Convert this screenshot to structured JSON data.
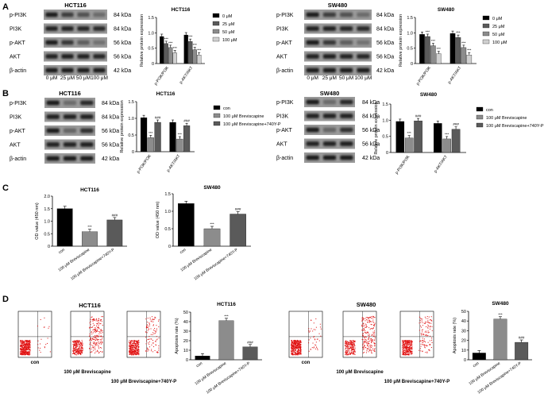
{
  "figure": {
    "panel_letters": [
      "A",
      "B",
      "C",
      "D"
    ],
    "wb_labels_A": [
      "p-PI3K",
      "PI3K",
      "p-AKT",
      "AKT",
      "β-actin"
    ],
    "kda_A": [
      "84 kDa",
      "84 kDa",
      "56 kDa",
      "56 kDa",
      "42 kDa"
    ],
    "conc_labels": [
      "0 μM",
      "25 μM",
      "50 μM",
      "100 μM"
    ],
    "cell_lines": [
      "HCT116",
      "SW480"
    ]
  },
  "colors": {
    "black": "#000000",
    "dark_gray": "#5a5a5a",
    "gray": "#8c8c8c",
    "light_gray": "#d0d0d0",
    "dot_red": "#e01010"
  },
  "chart_data": [
    {
      "id": "A-HCT116",
      "type": "bar",
      "title": "HCT116",
      "ylabel": "Relative protein expression",
      "ylim": [
        0,
        1.5
      ],
      "yticks": [
        0,
        0.5,
        1.0,
        1.5
      ],
      "categories": [
        "p-PI3K/PI3K",
        "p-AKT/AKT"
      ],
      "series": [
        {
          "name": "0 μM",
          "color": "#000000",
          "values": [
            0.88,
            0.93
          ],
          "sig": [
            "",
            ""
          ]
        },
        {
          "name": "25 μM",
          "color": "#5a5a5a",
          "values": [
            0.65,
            0.72
          ],
          "sig": [
            "***",
            "***"
          ]
        },
        {
          "name": "50 μM",
          "color": "#8c8c8c",
          "values": [
            0.52,
            0.45
          ],
          "sig": [
            "***",
            "***"
          ]
        },
        {
          "name": "100 μM",
          "color": "#d0d0d0",
          "values": [
            0.35,
            0.28
          ],
          "sig": [
            "***",
            "***"
          ]
        }
      ]
    },
    {
      "id": "A-SW480",
      "type": "bar",
      "title": "SW480",
      "ylabel": "Relative protein expression",
      "ylim": [
        0,
        1.5
      ],
      "yticks": [
        0,
        0.5,
        1.0,
        1.5
      ],
      "categories": [
        "p-PI3K/PI3K",
        "p-AKT/AKT"
      ],
      "series": [
        {
          "name": "0 μM",
          "color": "#000000",
          "values": [
            0.95,
            0.98
          ],
          "sig": [
            "",
            ""
          ]
        },
        {
          "name": "25 μM",
          "color": "#5a5a5a",
          "values": [
            0.88,
            0.85
          ],
          "sig": [
            "***",
            "***"
          ]
        },
        {
          "name": "50 μM",
          "color": "#8c8c8c",
          "values": [
            0.58,
            0.52
          ],
          "sig": [
            "***",
            "***"
          ]
        },
        {
          "name": "100 μM",
          "color": "#d0d0d0",
          "values": [
            0.32,
            0.28
          ],
          "sig": [
            "***",
            "***"
          ]
        }
      ]
    },
    {
      "id": "B-HCT116",
      "type": "bar",
      "title": "HCT116",
      "ylabel": "Relative protein expression",
      "ylim": [
        0,
        1.5
      ],
      "yticks": [
        0,
        0.5,
        1.0,
        1.5
      ],
      "categories": [
        "p-PI3K/PI3K",
        "p-AKT/AKT"
      ],
      "series": [
        {
          "name": "con",
          "color": "#000000",
          "values": [
            1.02,
            0.88
          ],
          "sig": [
            "",
            ""
          ]
        },
        {
          "name": "100 μM Breviscapine",
          "color": "#8c8c8c",
          "values": [
            0.42,
            0.38
          ],
          "sig": [
            "***",
            "***"
          ]
        },
        {
          "name": "100 μM Breviscapine+740Y-P",
          "color": "#5a5a5a",
          "values": [
            0.88,
            0.78
          ],
          "sig": [
            "###",
            "###"
          ]
        }
      ]
    },
    {
      "id": "B-SW480",
      "type": "bar",
      "title": "SW480",
      "ylabel": "Relative protein expression",
      "ylim": [
        0,
        1.5
      ],
      "yticks": [
        0,
        0.5,
        1.0,
        1.5
      ],
      "categories": [
        "p-PI3K/PI3K",
        "p-AKT/AKT"
      ],
      "series": [
        {
          "name": "con",
          "color": "#000000",
          "values": [
            0.96,
            0.9
          ],
          "sig": [
            "",
            ""
          ]
        },
        {
          "name": "100 μM Breviscapine",
          "color": "#8c8c8c",
          "values": [
            0.45,
            0.42
          ],
          "sig": [
            "***",
            "***"
          ]
        },
        {
          "name": "100 μM Breviscapine+740Y-P",
          "color": "#5a5a5a",
          "values": [
            0.98,
            0.72
          ],
          "sig": [
            "###",
            "###"
          ]
        }
      ]
    },
    {
      "id": "C-HCT116",
      "type": "bar",
      "title": "HCT116",
      "ylabel": "OD value (450 nm)",
      "ylim": [
        0,
        2.0
      ],
      "yticks": [
        0,
        0.5,
        1.0,
        1.5,
        2.0
      ],
      "categories": [
        "con",
        "100 μM Breviscapine",
        "100 μM Breviscapine+740Y-P"
      ],
      "values": [
        1.5,
        0.58,
        1.05
      ],
      "colors": [
        "#000000",
        "#8c8c8c",
        "#5a5a5a"
      ],
      "sig": [
        "",
        "***",
        "###"
      ]
    },
    {
      "id": "C-SW480",
      "type": "bar",
      "title": "SW480",
      "ylabel": "OD value (450 nm)",
      "ylim": [
        0,
        1.5
      ],
      "yticks": [
        0,
        0.5,
        1.0,
        1.5
      ],
      "categories": [
        "con",
        "100 μM Breviscapine",
        "100 μM Breviscapine+740Y-P"
      ],
      "values": [
        1.22,
        0.5,
        0.92
      ],
      "colors": [
        "#000000",
        "#8c8c8c",
        "#5a5a5a"
      ],
      "sig": [
        "",
        "***",
        "###"
      ]
    },
    {
      "id": "D-HCT116",
      "type": "bar",
      "title": "HCT116",
      "ylabel": "Apoptosis rate (%)",
      "ylim": [
        0,
        50
      ],
      "yticks": [
        0,
        10,
        20,
        30,
        40,
        50
      ],
      "categories": [
        "con",
        "100 μM Breviscapine",
        "100 μM Breviscapine+740Y-P"
      ],
      "values": [
        4,
        41,
        13.5
      ],
      "colors": [
        "#000000",
        "#8c8c8c",
        "#5a5a5a"
      ],
      "sig": [
        "",
        "***",
        "###"
      ]
    },
    {
      "id": "D-SW480",
      "type": "bar",
      "title": "SW480",
      "ylabel": "Apoptosis rate (%)",
      "ylim": [
        0,
        50
      ],
      "yticks": [
        0,
        10,
        20,
        30,
        40,
        50
      ],
      "categories": [
        "con",
        "100 μM Breviscapine",
        "100 μM Breviscapine+740Y-P"
      ],
      "values": [
        7,
        42,
        18
      ],
      "colors": [
        "#000000",
        "#8c8c8c",
        "#5a5a5a"
      ],
      "sig": [
        "",
        "***",
        "###"
      ]
    }
  ]
}
